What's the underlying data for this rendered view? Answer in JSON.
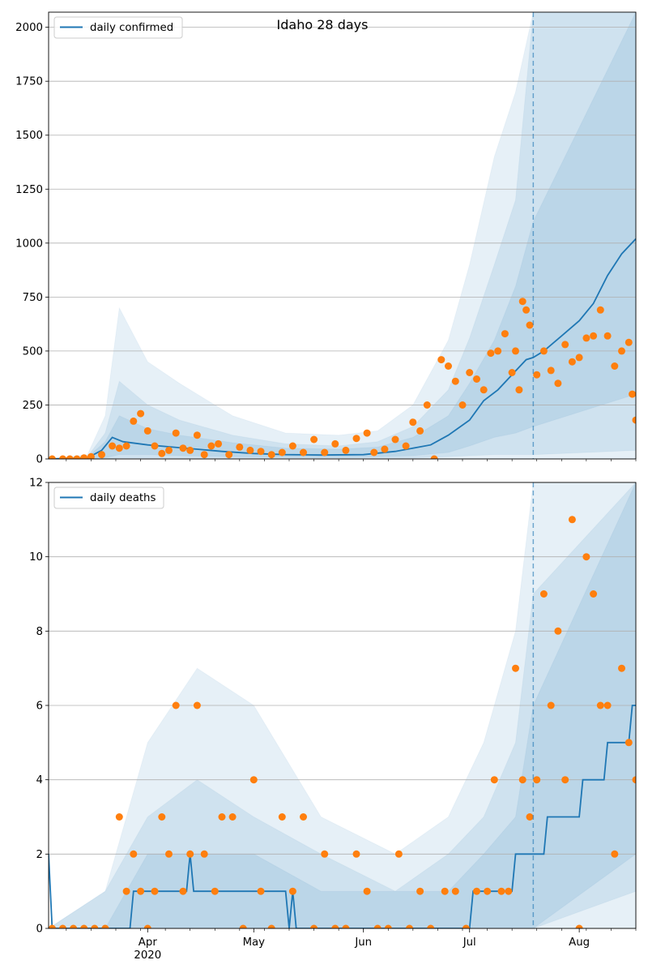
{
  "colors": {
    "line": "#1f77b4",
    "points": "#ff7f0e",
    "band": "#1f77b4",
    "grid": "#b0b0b0",
    "vline": "#1f77b4"
  },
  "chart_data": [
    {
      "type": "line",
      "title": "Idaho 28 days",
      "series_name": "daily confirmed",
      "legend_location": "upper left",
      "xlim": [
        "2020-03-04",
        "2020-08-17"
      ],
      "ylim": [
        0,
        2070
      ],
      "yticks": [
        0,
        250,
        500,
        750,
        1000,
        1250,
        1500,
        1750,
        2000
      ],
      "ytick_labels": [
        "0",
        "250",
        "500",
        "750",
        "1000",
        "1250",
        "1500",
        "1750",
        "2000"
      ],
      "grid": "horizontal",
      "forecast_start": "2020-07-19",
      "x_tick_labels": [],
      "line": {
        "x": [
          "2020-03-04",
          "2020-03-15",
          "2020-03-19",
          "2020-03-22",
          "2020-03-25",
          "2020-04-01",
          "2020-04-08",
          "2020-04-15",
          "2020-04-22",
          "2020-05-01",
          "2020-05-10",
          "2020-05-20",
          "2020-06-01",
          "2020-06-10",
          "2020-06-20",
          "2020-06-25",
          "2020-07-01",
          "2020-07-05",
          "2020-07-09",
          "2020-07-13",
          "2020-07-17",
          "2020-07-19",
          "2020-07-22",
          "2020-07-27",
          "2020-08-01",
          "2020-08-05",
          "2020-08-09",
          "2020-08-13",
          "2020-08-17"
        ],
        "y": [
          0,
          5,
          40,
          100,
          80,
          65,
          55,
          45,
          35,
          25,
          20,
          18,
          20,
          35,
          65,
          110,
          180,
          270,
          320,
          390,
          460,
          470,
          500,
          570,
          640,
          720,
          850,
          950,
          1020
        ]
      },
      "bands": [
        {
          "x": [
            "2020-03-04",
            "2020-03-15",
            "2020-03-20",
            "2020-03-24",
            "2020-04-01",
            "2020-04-10",
            "2020-04-25",
            "2020-05-10",
            "2020-05-25",
            "2020-06-05",
            "2020-06-15",
            "2020-06-25",
            "2020-07-01",
            "2020-07-08",
            "2020-07-14",
            "2020-07-19",
            "2020-08-17"
          ],
          "lower": [
            0,
            0,
            0,
            0,
            0,
            0,
            0,
            0,
            0,
            0,
            0,
            0,
            0,
            0,
            0,
            0,
            0
          ],
          "upper": [
            0,
            20,
            200,
            700,
            450,
            350,
            200,
            120,
            110,
            130,
            250,
            550,
            900,
            1400,
            1700,
            2070,
            2070
          ]
        },
        {
          "x": [
            "2020-03-04",
            "2020-03-15",
            "2020-03-20",
            "2020-03-24",
            "2020-04-01",
            "2020-04-10",
            "2020-04-25",
            "2020-05-10",
            "2020-05-25",
            "2020-06-05",
            "2020-06-15",
            "2020-06-25",
            "2020-07-01",
            "2020-07-08",
            "2020-07-14",
            "2020-07-19",
            "2020-08-17"
          ],
          "lower": [
            0,
            0,
            0,
            5,
            5,
            5,
            5,
            5,
            5,
            5,
            5,
            10,
            15,
            20,
            20,
            20,
            40
          ],
          "upper": [
            0,
            10,
            120,
            360,
            250,
            180,
            110,
            70,
            60,
            80,
            150,
            320,
            560,
            900,
            1200,
            2070,
            2070
          ]
        },
        {
          "x": [
            "2020-03-04",
            "2020-03-15",
            "2020-03-20",
            "2020-03-24",
            "2020-04-01",
            "2020-04-10",
            "2020-04-25",
            "2020-05-10",
            "2020-05-25",
            "2020-06-05",
            "2020-06-15",
            "2020-06-25",
            "2020-07-01",
            "2020-07-08",
            "2020-07-14",
            "2020-07-19",
            "2020-08-17"
          ],
          "lower": [
            0,
            0,
            5,
            20,
            20,
            15,
            10,
            8,
            8,
            10,
            15,
            30,
            60,
            100,
            120,
            150,
            300
          ],
          "upper": [
            0,
            8,
            80,
            200,
            140,
            110,
            75,
            50,
            45,
            55,
            100,
            200,
            350,
            550,
            800,
            1100,
            2070
          ]
        }
      ],
      "points": {
        "x": [
          "2020-03-05",
          "2020-03-08",
          "2020-03-10",
          "2020-03-12",
          "2020-03-14",
          "2020-03-16",
          "2020-03-19",
          "2020-03-22",
          "2020-03-24",
          "2020-03-26",
          "2020-03-28",
          "2020-03-30",
          "2020-04-01",
          "2020-04-03",
          "2020-04-05",
          "2020-04-07",
          "2020-04-09",
          "2020-04-11",
          "2020-04-13",
          "2020-04-15",
          "2020-04-17",
          "2020-04-19",
          "2020-04-21",
          "2020-04-24",
          "2020-04-27",
          "2020-04-30",
          "2020-05-03",
          "2020-05-06",
          "2020-05-09",
          "2020-05-12",
          "2020-05-15",
          "2020-05-18",
          "2020-05-21",
          "2020-05-24",
          "2020-05-27",
          "2020-05-30",
          "2020-06-02",
          "2020-06-04",
          "2020-06-07",
          "2020-06-10",
          "2020-06-13",
          "2020-06-15",
          "2020-06-17",
          "2020-06-19",
          "2020-06-21",
          "2020-06-23",
          "2020-06-25",
          "2020-06-27",
          "2020-06-29",
          "2020-07-01",
          "2020-07-03",
          "2020-07-05",
          "2020-07-07",
          "2020-07-09",
          "2020-07-11",
          "2020-07-13",
          "2020-07-14",
          "2020-07-15",
          "2020-07-16",
          "2020-07-17",
          "2020-07-18",
          "2020-07-20",
          "2020-07-22",
          "2020-07-24",
          "2020-07-26",
          "2020-07-28",
          "2020-07-30",
          "2020-08-01",
          "2020-08-03",
          "2020-08-05",
          "2020-08-07",
          "2020-08-09",
          "2020-08-11",
          "2020-08-13",
          "2020-08-15",
          "2020-08-16",
          "2020-08-17"
        ],
        "y": [
          0,
          0,
          0,
          0,
          5,
          10,
          20,
          60,
          50,
          60,
          175,
          210,
          130,
          60,
          25,
          40,
          120,
          50,
          40,
          110,
          20,
          60,
          70,
          20,
          55,
          40,
          35,
          20,
          30,
          60,
          30,
          90,
          30,
          70,
          40,
          95,
          120,
          30,
          45,
          90,
          60,
          170,
          130,
          250,
          0,
          460,
          430,
          360,
          250,
          400,
          370,
          320,
          490,
          500,
          580,
          400,
          500,
          320,
          730,
          690,
          620,
          390,
          500,
          410,
          350,
          530,
          450,
          470,
          560,
          570,
          690,
          570,
          430,
          500,
          540,
          300,
          180
        ]
      }
    },
    {
      "type": "line",
      "title": "",
      "series_name": "daily deaths",
      "legend_location": "upper left",
      "xlim": [
        "2020-03-04",
        "2020-08-17"
      ],
      "ylim": [
        0,
        12
      ],
      "yticks": [
        0,
        2,
        4,
        6,
        8,
        10,
        12
      ],
      "ytick_labels": [
        "0",
        "2",
        "4",
        "6",
        "8",
        "10",
        "12"
      ],
      "grid": "horizontal",
      "forecast_start": "2020-07-19",
      "x_ticks": [
        "2020-04-01",
        "2020-05-01",
        "2020-06-01",
        "2020-07-01",
        "2020-08-01"
      ],
      "x_tick_labels": [
        "Apr\n2020",
        "May",
        "Jun",
        "Jul",
        "Aug"
      ],
      "line": {
        "x": [
          "2020-03-04",
          "2020-03-05",
          "2020-03-27",
          "2020-03-28",
          "2020-04-12",
          "2020-04-13",
          "2020-04-14",
          "2020-05-10",
          "2020-05-11",
          "2020-05-12",
          "2020-05-13",
          "2020-07-01",
          "2020-07-02",
          "2020-07-13",
          "2020-07-14",
          "2020-07-22",
          "2020-07-23",
          "2020-08-01",
          "2020-08-02",
          "2020-08-08",
          "2020-08-09",
          "2020-08-15",
          "2020-08-16",
          "2020-08-17"
        ],
        "y": [
          2,
          0,
          0,
          1,
          1,
          2,
          1,
          1,
          0,
          1,
          0,
          0,
          1,
          1,
          2,
          2,
          3,
          3,
          4,
          4,
          5,
          5,
          6,
          6
        ]
      },
      "bands": [
        {
          "x": [
            "2020-03-04",
            "2020-03-20",
            "2020-04-01",
            "2020-04-15",
            "2020-05-01",
            "2020-05-20",
            "2020-06-10",
            "2020-06-25",
            "2020-07-05",
            "2020-07-14",
            "2020-07-19",
            "2020-08-17"
          ],
          "lower": [
            0,
            0,
            0,
            0,
            0,
            0,
            0,
            0,
            0,
            0,
            0,
            0
          ],
          "upper": [
            0,
            1,
            5,
            7,
            6,
            3,
            2,
            3,
            5,
            8,
            12,
            12
          ]
        },
        {
          "x": [
            "2020-03-04",
            "2020-03-20",
            "2020-04-01",
            "2020-04-15",
            "2020-05-01",
            "2020-05-20",
            "2020-06-10",
            "2020-06-25",
            "2020-07-05",
            "2020-07-14",
            "2020-07-19",
            "2020-08-17"
          ],
          "lower": [
            0,
            0,
            0,
            0,
            0,
            0,
            0,
            0,
            0,
            0,
            0,
            1
          ],
          "upper": [
            0,
            1,
            3,
            4,
            3,
            2,
            1,
            2,
            3,
            5,
            9,
            12
          ]
        },
        {
          "x": [
            "2020-03-04",
            "2020-03-20",
            "2020-04-01",
            "2020-04-15",
            "2020-05-01",
            "2020-05-20",
            "2020-06-10",
            "2020-06-25",
            "2020-07-05",
            "2020-07-14",
            "2020-07-19",
            "2020-08-17"
          ],
          "lower": [
            0,
            0,
            0,
            0,
            0,
            0,
            0,
            0,
            0,
            0,
            0,
            2
          ],
          "upper": [
            0,
            0,
            2,
            2,
            2,
            1,
            1,
            1,
            2,
            3,
            6,
            12
          ]
        }
      ],
      "points": {
        "x": [
          "2020-03-05",
          "2020-03-08",
          "2020-03-11",
          "2020-03-14",
          "2020-03-17",
          "2020-03-20",
          "2020-03-24",
          "2020-03-26",
          "2020-03-28",
          "2020-03-30",
          "2020-04-01",
          "2020-04-03",
          "2020-04-05",
          "2020-04-07",
          "2020-04-09",
          "2020-04-11",
          "2020-04-13",
          "2020-04-15",
          "2020-04-17",
          "2020-04-20",
          "2020-04-22",
          "2020-04-25",
          "2020-04-28",
          "2020-05-01",
          "2020-05-03",
          "2020-05-06",
          "2020-05-09",
          "2020-05-12",
          "2020-05-15",
          "2020-05-18",
          "2020-05-21",
          "2020-05-24",
          "2020-05-27",
          "2020-05-30",
          "2020-06-02",
          "2020-06-05",
          "2020-06-08",
          "2020-06-11",
          "2020-06-14",
          "2020-06-17",
          "2020-06-20",
          "2020-06-24",
          "2020-06-27",
          "2020-06-30",
          "2020-07-03",
          "2020-07-06",
          "2020-07-08",
          "2020-07-10",
          "2020-07-12",
          "2020-07-14",
          "2020-07-16",
          "2020-07-18",
          "2020-07-20",
          "2020-07-22",
          "2020-07-24",
          "2020-07-26",
          "2020-07-28",
          "2020-07-30",
          "2020-08-01",
          "2020-08-03",
          "2020-08-05",
          "2020-08-07",
          "2020-08-09",
          "2020-08-11",
          "2020-08-13",
          "2020-08-15",
          "2020-08-17"
        ],
        "y": [
          0,
          0,
          0,
          0,
          0,
          0,
          3,
          1,
          2,
          1,
          0,
          1,
          3,
          2,
          6,
          1,
          2,
          6,
          2,
          1,
          3,
          3,
          0,
          4,
          1,
          0,
          3,
          1,
          3,
          0,
          2,
          0,
          0,
          2,
          1,
          0,
          0,
          2,
          0,
          1,
          0,
          1,
          1,
          0,
          1,
          1,
          4,
          1,
          1,
          7,
          4,
          3,
          4,
          9,
          6,
          8,
          4,
          11,
          0,
          10,
          9,
          6,
          6,
          2,
          7,
          5,
          4
        ]
      }
    }
  ]
}
